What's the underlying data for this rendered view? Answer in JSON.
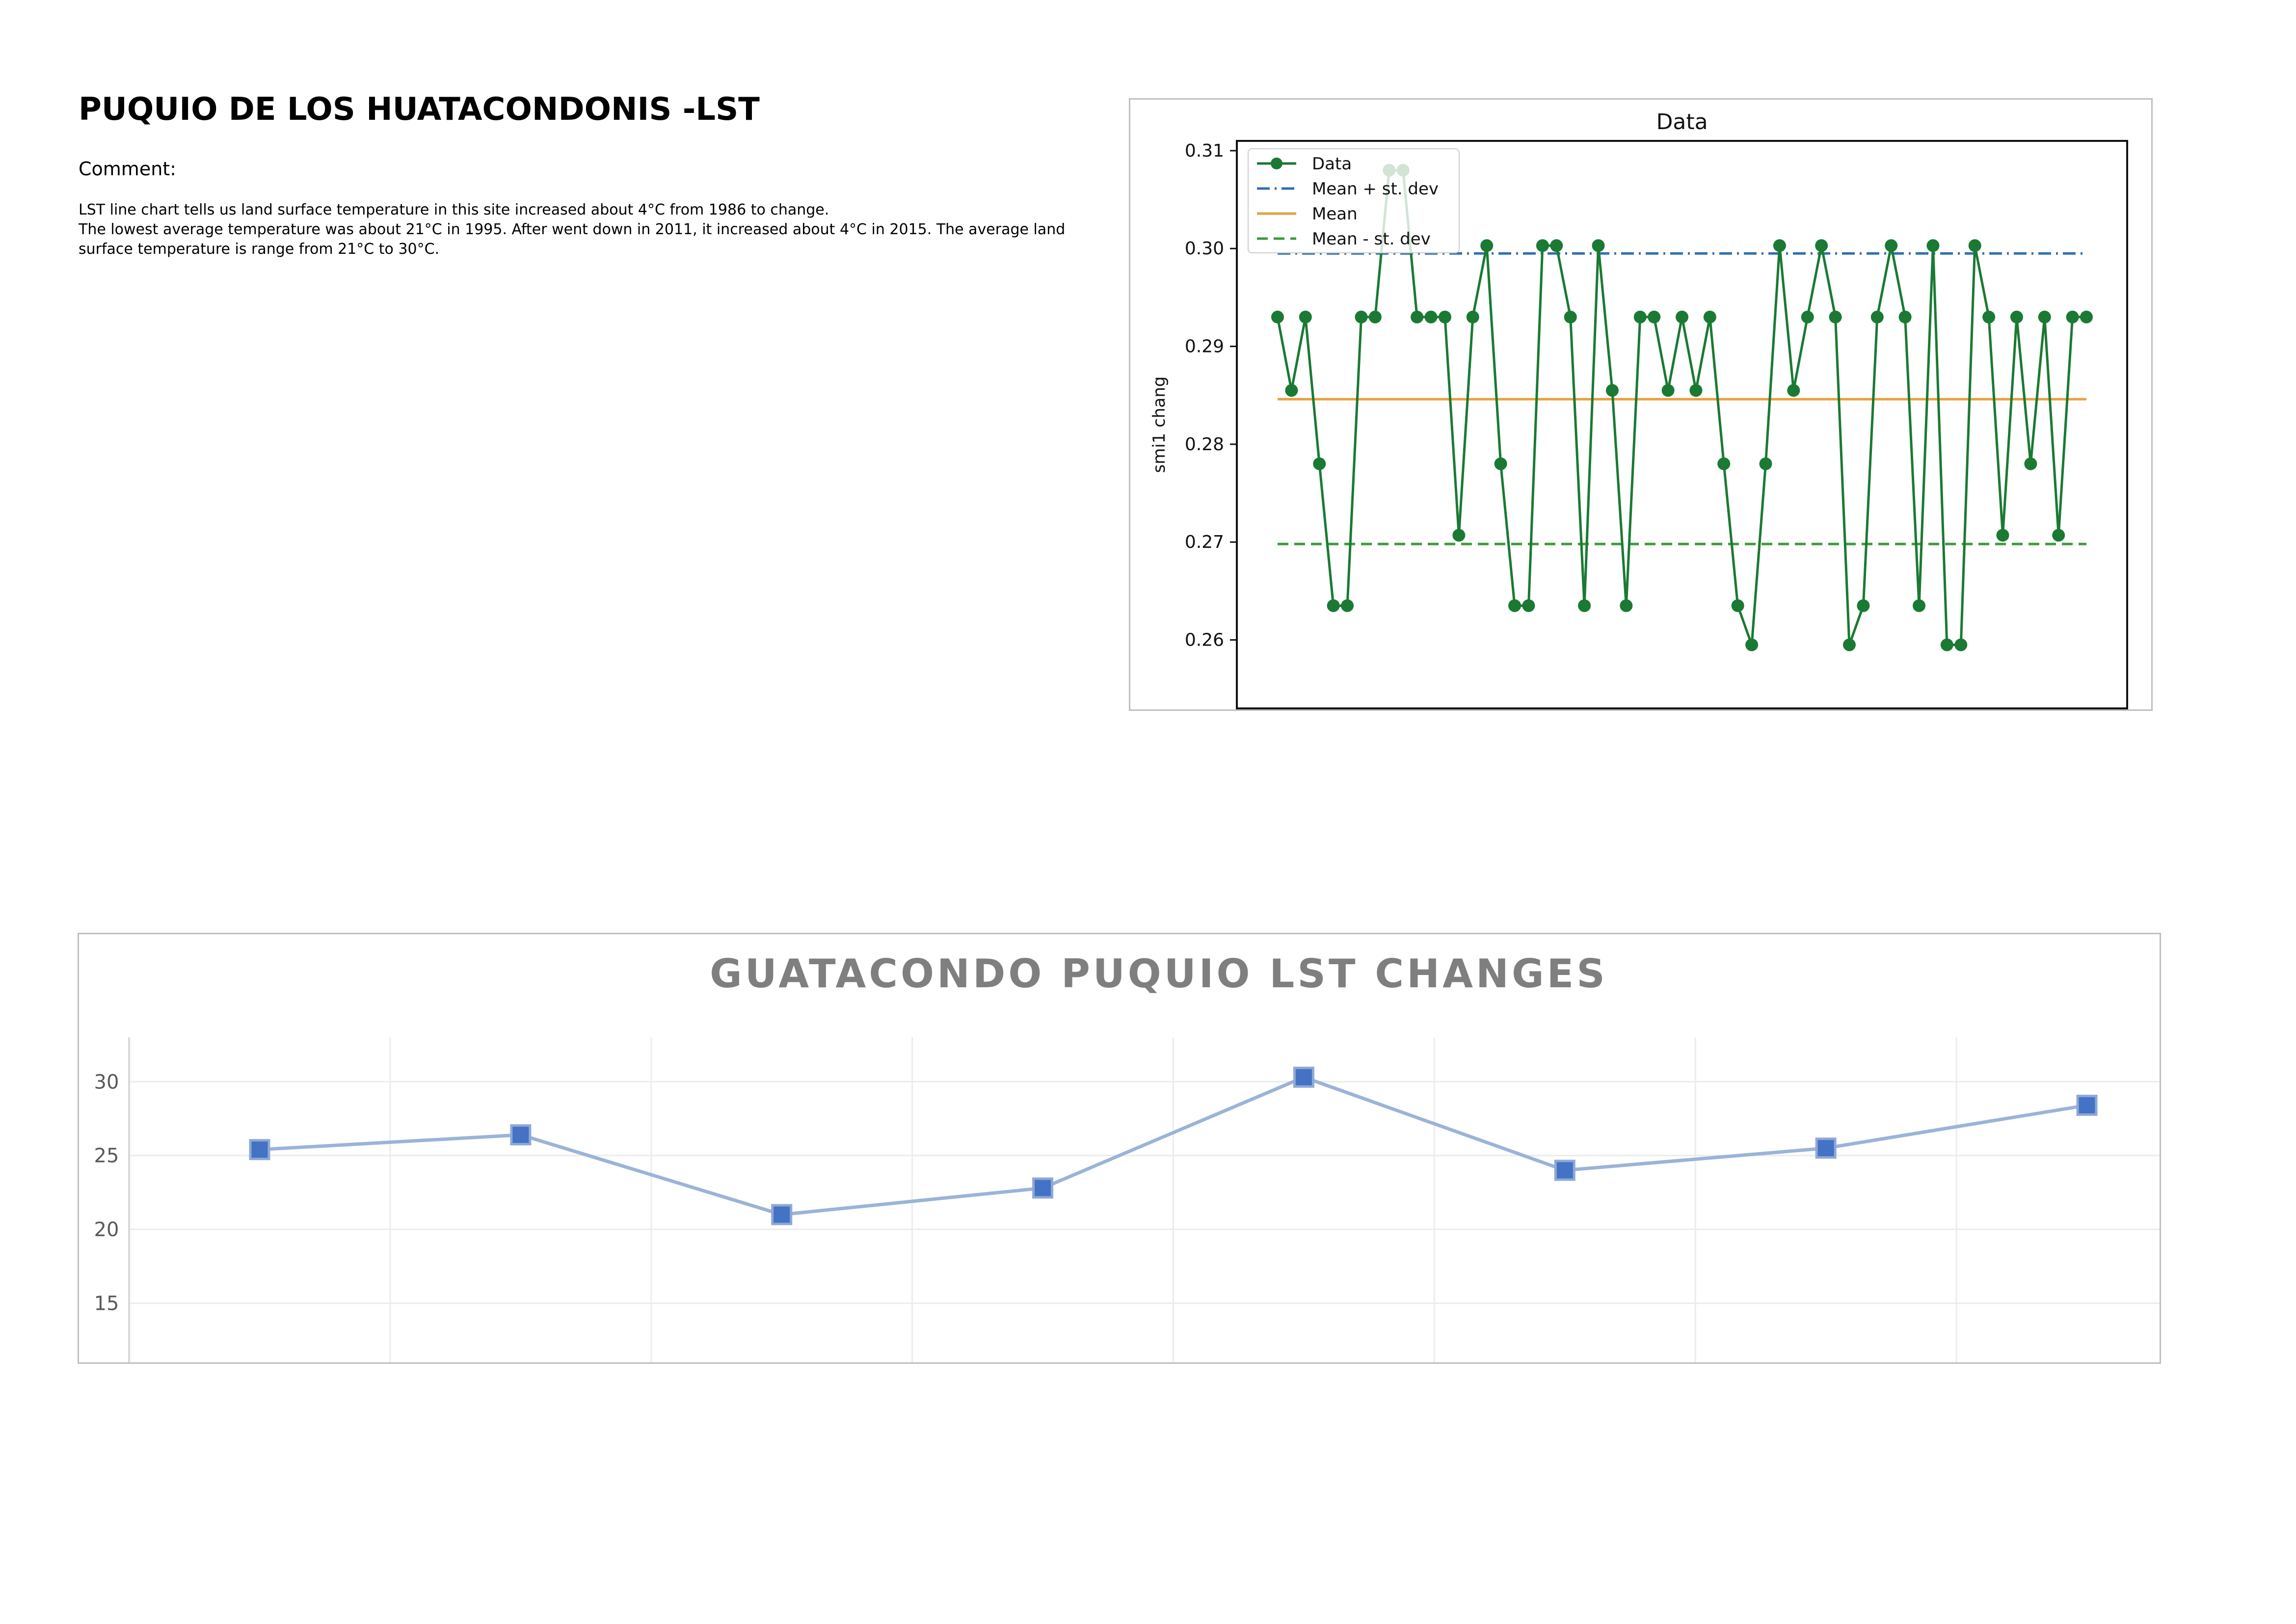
{
  "page": {
    "title": "PUQUIO DE LOS HUATACONDONIS -LST",
    "comment_label": "Comment:",
    "comment_lines": [
      "LST line chart tells us land surface temperature in this site increased about 4°C from 1986 to change.",
      "The lowest average temperature was about 21°C in 1995. After went down in 2011, it increased about 4°C in 2015. The average land surface temperature is range from 21°C to 30°C."
    ]
  },
  "chart_data": [
    {
      "type": "line",
      "title": "Data",
      "xlabel": "",
      "ylabel": "smi1 chang",
      "ylim": [
        0.253,
        0.311
      ],
      "yticks": [
        0.26,
        0.27,
        0.28,
        0.29,
        0.3,
        0.31
      ],
      "grid": false,
      "legend_position": "top-left",
      "series": [
        {
          "name": "Data",
          "color": "#1a7a33",
          "style": "solid-with-markers",
          "values": [
            0.293,
            0.2855,
            0.293,
            0.278,
            0.2635,
            0.2635,
            0.293,
            0.293,
            0.308,
            0.308,
            0.293,
            0.293,
            0.293,
            0.2707,
            0.293,
            0.3003,
            0.278,
            0.2635,
            0.2635,
            0.3003,
            0.3003,
            0.293,
            0.2635,
            0.3003,
            0.2855,
            0.2635,
            0.293,
            0.293,
            0.2855,
            0.293,
            0.2855,
            0.293,
            0.278,
            0.2635,
            0.2595,
            0.278,
            0.3003,
            0.2855,
            0.293,
            0.3003,
            0.293,
            0.2595,
            0.2635,
            0.293,
            0.3003,
            0.293,
            0.2635,
            0.3003,
            0.2595,
            0.2595,
            0.3003,
            0.293,
            0.2707,
            0.293,
            0.278,
            0.293,
            0.2707,
            0.293,
            0.293
          ]
        },
        {
          "name": "Mean + st. dev",
          "color": "#2e6fb0",
          "style": "dashdot",
          "value": 0.2995
        },
        {
          "name": "Mean",
          "color": "#e8a03a",
          "style": "solid",
          "value": 0.2846
        },
        {
          "name": "Mean - st. dev",
          "color": "#3a9a3a",
          "style": "dashed",
          "value": 0.2698
        }
      ]
    },
    {
      "type": "line",
      "title": "GUATACONDO PUQUIO LST CHANGES",
      "xlabel": "",
      "ylabel": "",
      "ylim": [
        11,
        33
      ],
      "yticks": [
        15,
        20,
        25,
        30
      ],
      "grid": true,
      "series": [
        {
          "color": "#4472c4",
          "line_color": "#9bb3d8",
          "marker": "square",
          "values": [
            25.4,
            26.4,
            21.0,
            22.8,
            30.3,
            24.0,
            25.5,
            28.4
          ]
        }
      ]
    }
  ]
}
